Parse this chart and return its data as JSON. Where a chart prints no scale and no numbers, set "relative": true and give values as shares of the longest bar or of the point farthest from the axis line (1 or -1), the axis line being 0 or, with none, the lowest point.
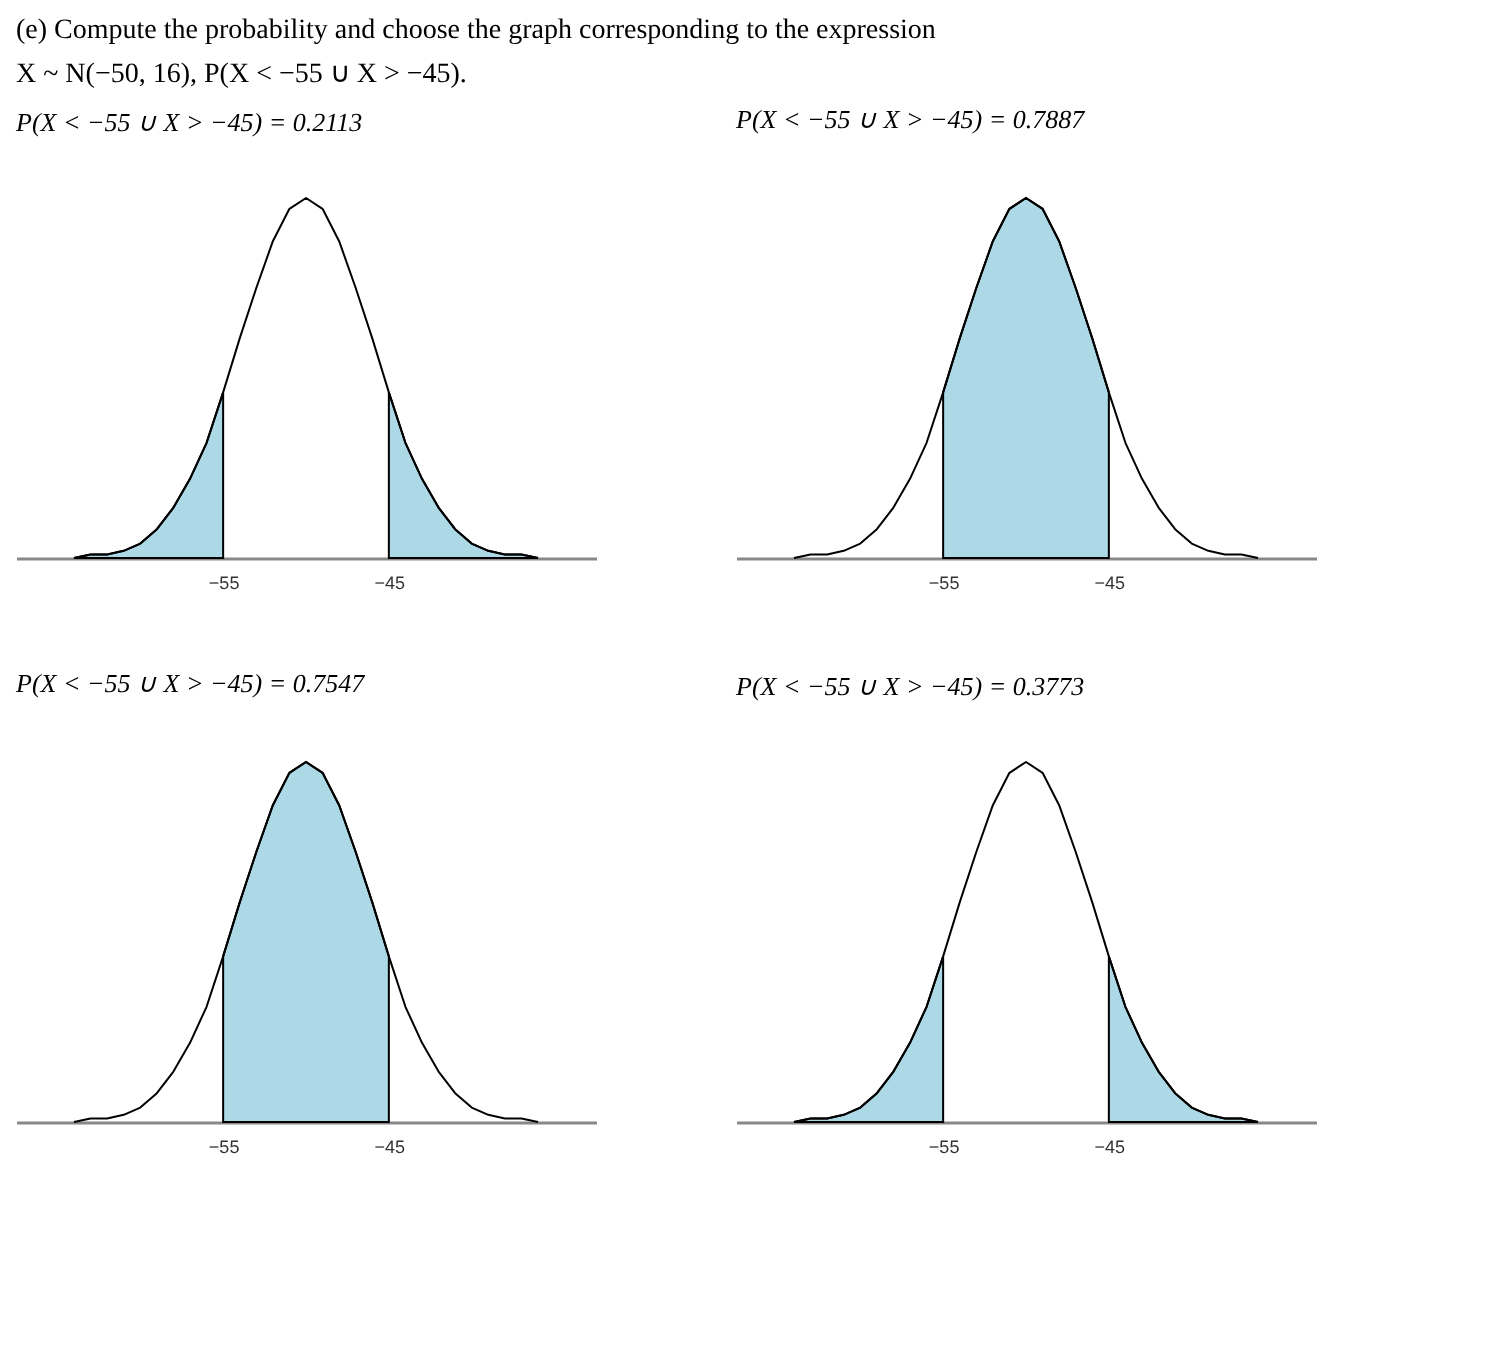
{
  "chart_data": [
    {
      "type": "line",
      "relative": true,
      "title": "P(X < −55 ∪ X > −45) = 0.2113",
      "annotations": [
        "(e) Compute the probability and choose the graph corresponding to the expression",
        "X ~ N(−50, 16), P(X < −55 ∪ X > −45)."
      ],
      "xlim": [
        -67.5,
        -32.5
      ],
      "xticks": [
        -55,
        -45
      ],
      "tick_labels": "x",
      "grid": false,
      "series": [
        {
          "type": "area",
          "color": "#add8e6",
          "x": [
            -64,
            -63,
            -62,
            -61,
            -60,
            -59,
            -58,
            -57,
            -56,
            -55
          ],
          "values": [
            0.0,
            0.01,
            0.01,
            0.02,
            0.04,
            0.08,
            0.14,
            0.22,
            0.32,
            0.46
          ]
        },
        {
          "type": "area",
          "color": "#add8e6",
          "x": [
            -45,
            -44,
            -43,
            -42,
            -41,
            -40,
            -39,
            -38,
            -37,
            -36
          ],
          "values": [
            0.46,
            0.32,
            0.22,
            0.14,
            0.08,
            0.04,
            0.02,
            0.01,
            0.01,
            0.0
          ]
        },
        {
          "color": "#000000",
          "x": [
            -64,
            -63,
            -62,
            -61,
            -60,
            -59,
            -58,
            -57,
            -56,
            -55,
            -54,
            -53,
            -52,
            -51,
            -50,
            -49,
            -48,
            -47,
            -46,
            -45,
            -44,
            -43,
            -42,
            -41,
            -40,
            -39,
            -38,
            -37,
            -36
          ],
          "values": [
            0.0,
            0.01,
            0.01,
            0.02,
            0.04,
            0.08,
            0.14,
            0.22,
            0.32,
            0.46,
            0.61,
            0.75,
            0.88,
            0.97,
            1,
            0.97,
            0.88,
            0.75,
            0.61,
            0.46,
            0.32,
            0.22,
            0.14,
            0.08,
            0.04,
            0.02,
            0.01,
            0.01,
            0.0
          ]
        }
      ]
    },
    {
      "type": "line",
      "relative": true,
      "title": "P(X < −55 ∪ X > −45) = 0.7887",
      "xlim": [
        -67.5,
        -32.5
      ],
      "xticks": [
        -55,
        -45
      ],
      "tick_labels": "x",
      "grid": false,
      "series": [
        {
          "type": "area",
          "color": "#add8e6",
          "x": [
            -55,
            -54,
            -53,
            -52,
            -51,
            -50,
            -49,
            -48,
            -47,
            -46,
            -45
          ],
          "values": [
            0.46,
            0.61,
            0.75,
            0.88,
            0.97,
            1,
            0.97,
            0.88,
            0.75,
            0.61,
            0.46
          ]
        },
        {
          "color": "#000000",
          "x": [
            -64,
            -63,
            -62,
            -61,
            -60,
            -59,
            -58,
            -57,
            -56,
            -55,
            -54,
            -53,
            -52,
            -51,
            -50,
            -49,
            -48,
            -47,
            -46,
            -45,
            -44,
            -43,
            -42,
            -41,
            -40,
            -39,
            -38,
            -37,
            -36
          ],
          "values": [
            0.0,
            0.01,
            0.01,
            0.02,
            0.04,
            0.08,
            0.14,
            0.22,
            0.32,
            0.46,
            0.61,
            0.75,
            0.88,
            0.97,
            1,
            0.97,
            0.88,
            0.75,
            0.61,
            0.46,
            0.32,
            0.22,
            0.14,
            0.08,
            0.04,
            0.02,
            0.01,
            0.01,
            0.0
          ]
        }
      ]
    },
    {
      "type": "line",
      "relative": true,
      "title": "P(X < −55 ∪ X > −45) = 0.7547",
      "xlim": [
        -67.5,
        -32.5
      ],
      "xticks": [
        -55,
        -45
      ],
      "tick_labels": "x",
      "grid": false,
      "series": [
        {
          "type": "area",
          "color": "#add8e6",
          "x": [
            -55,
            -54,
            -53,
            -52,
            -51,
            -50,
            -49,
            -48,
            -47,
            -46,
            -45
          ],
          "values": [
            0.46,
            0.61,
            0.75,
            0.88,
            0.97,
            1,
            0.97,
            0.88,
            0.75,
            0.61,
            0.46
          ]
        },
        {
          "color": "#000000",
          "x": [
            -64,
            -63,
            -62,
            -61,
            -60,
            -59,
            -58,
            -57,
            -56,
            -55,
            -54,
            -53,
            -52,
            -51,
            -50,
            -49,
            -48,
            -47,
            -46,
            -45,
            -44,
            -43,
            -42,
            -41,
            -40,
            -39,
            -38,
            -37,
            -36
          ],
          "values": [
            0.0,
            0.01,
            0.01,
            0.02,
            0.04,
            0.08,
            0.14,
            0.22,
            0.32,
            0.46,
            0.61,
            0.75,
            0.88,
            0.97,
            1,
            0.97,
            0.88,
            0.75,
            0.61,
            0.46,
            0.32,
            0.22,
            0.14,
            0.08,
            0.04,
            0.02,
            0.01,
            0.01,
            0.0
          ]
        }
      ]
    },
    {
      "type": "line",
      "relative": true,
      "title": "P(X < −55 ∪ X > −45) = 0.3773",
      "xlim": [
        -67.5,
        -32.5
      ],
      "xticks": [
        -55,
        -45
      ],
      "tick_labels": "x",
      "grid": false,
      "series": [
        {
          "type": "area",
          "color": "#add8e6",
          "x": [
            -64,
            -63,
            -62,
            -61,
            -60,
            -59,
            -58,
            -57,
            -56,
            -55
          ],
          "values": [
            0.0,
            0.01,
            0.01,
            0.02,
            0.04,
            0.08,
            0.14,
            0.22,
            0.32,
            0.46
          ]
        },
        {
          "type": "area",
          "color": "#add8e6",
          "x": [
            -45,
            -44,
            -43,
            -42,
            -41,
            -40,
            -39,
            -38,
            -37,
            -36
          ],
          "values": [
            0.46,
            0.32,
            0.22,
            0.14,
            0.08,
            0.04,
            0.02,
            0.01,
            0.01,
            0.0
          ]
        },
        {
          "color": "#000000",
          "x": [
            -64,
            -63,
            -62,
            -61,
            -60,
            -59,
            -58,
            -57,
            -56,
            -55,
            -54,
            -53,
            -52,
            -51,
            -50,
            -49,
            -48,
            -47,
            -46,
            -45,
            -44,
            -43,
            -42,
            -41,
            -40,
            -39,
            -38,
            -37,
            -36
          ],
          "values": [
            0.0,
            0.01,
            0.01,
            0.02,
            0.04,
            0.08,
            0.14,
            0.22,
            0.32,
            0.46,
            0.61,
            0.75,
            0.88,
            0.97,
            1,
            0.97,
            0.88,
            0.75,
            0.61,
            0.46,
            0.32,
            0.22,
            0.14,
            0.08,
            0.04,
            0.02,
            0.01,
            0.01,
            0.0
          ]
        }
      ]
    }
  ]
}
